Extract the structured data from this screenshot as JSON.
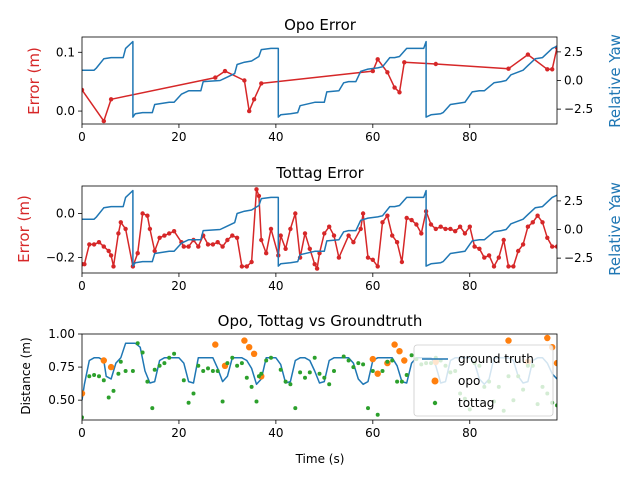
{
  "chart_data": [
    {
      "type": "line",
      "title": "Opo Error",
      "xlabel": "",
      "ylabel": "Error (m)",
      "y2label": "Relative Yaw",
      "xlim": [
        0,
        98
      ],
      "ylim": [
        -0.022,
        0.126
      ],
      "y2lim": [
        -3.8,
        3.8
      ],
      "xticks": [
        0,
        20,
        40,
        60,
        80
      ],
      "yticks": [
        0.0,
        0.1
      ],
      "ytick_labels": [
        "0.0",
        "0.1"
      ],
      "y2ticks": [
        -2.5,
        0.0,
        2.5
      ],
      "y2tick_labels": [
        "−2.5",
        "0.0",
        "2.5"
      ],
      "series": [
        {
          "role": "error",
          "color": "#d62728",
          "marker": "dot",
          "x": [
            0,
            4.5,
            6,
            27.5,
            29.5,
            33.5,
            34.5,
            35.5,
            37,
            60,
            61,
            63,
            64.5,
            65.5,
            66.5,
            73,
            88,
            92,
            96,
            97,
            98
          ],
          "y": [
            0.036,
            -0.017,
            0.02,
            0.057,
            0.068,
            0.052,
            0.0,
            0.02,
            0.047,
            0.068,
            0.088,
            0.066,
            0.04,
            0.032,
            0.083,
            0.08,
            0.072,
            0.096,
            0.071,
            0.071,
            0.108
          ]
        },
        {
          "role": "relative-yaw",
          "color": "#1f77b4",
          "axis": "right",
          "x": [
            0,
            2.5,
            3,
            4.5,
            6,
            8.5,
            9,
            10.5,
            10.5,
            11,
            12.5,
            14.5,
            15,
            18,
            19,
            20.5,
            22,
            24.5,
            25,
            28.5,
            29.5,
            31.5,
            32,
            33.5,
            35,
            36.5,
            37,
            39,
            40.5,
            40.5,
            41,
            43,
            44.5,
            45,
            48,
            50,
            50.5,
            53,
            54,
            55,
            56.5,
            57.5,
            59,
            61,
            62,
            63.5,
            64.5,
            65.5,
            67,
            70.5,
            71,
            71,
            72,
            74,
            74.5,
            76,
            79,
            80.5,
            82,
            83,
            85,
            86.5,
            87.5,
            88.5,
            91,
            92,
            93.5,
            95,
            97,
            98
          ],
          "y": [
            0.9,
            0.9,
            1.1,
            1.9,
            2.0,
            2.0,
            2.8,
            3.4,
            -3.2,
            -2.9,
            -2.8,
            -2.8,
            -2.1,
            -1.9,
            -1.9,
            -1.2,
            -0.9,
            -0.9,
            -0.1,
            0.0,
            0.2,
            0.6,
            1.4,
            1.6,
            1.7,
            2.1,
            2.7,
            2.8,
            2.8,
            -3.2,
            -3.0,
            -2.9,
            -2.8,
            -2.2,
            -1.9,
            -1.9,
            -1.0,
            -0.9,
            -0.2,
            -0.1,
            -0.1,
            0.8,
            1.0,
            1.1,
            1.2,
            2.0,
            2.0,
            2.1,
            2.8,
            2.8,
            3.4,
            -3.2,
            -3.0,
            -2.9,
            -2.8,
            -2.1,
            -1.9,
            -1.0,
            -0.9,
            -0.9,
            -0.2,
            -0.1,
            0.0,
            0.5,
            0.9,
            1.3,
            1.9,
            2.0,
            2.8,
            3.0
          ]
        }
      ]
    },
    {
      "type": "line",
      "title": "Tottag Error",
      "xlabel": "",
      "ylabel": "Error (m)",
      "y2label": "Relative Yaw",
      "xlim": [
        0,
        98
      ],
      "ylim": [
        -0.27,
        0.125
      ],
      "y2lim": [
        -3.8,
        3.8
      ],
      "xticks": [
        0,
        20,
        40,
        60,
        80
      ],
      "yticks": [
        -0.2,
        0.0
      ],
      "ytick_labels": [
        "−0.2",
        "0.0"
      ],
      "y2ticks": [
        -2.5,
        0.0,
        2.5
      ],
      "y2tick_labels": [
        "−2.5",
        "0.0",
        "2.5"
      ],
      "series": [
        {
          "role": "error",
          "color": "#d62728",
          "marker": "dot",
          "x": [
            0,
            0.5,
            1.5,
            2.5,
            3.5,
            4.5,
            5.5,
            6,
            6.5,
            7.5,
            8,
            9,
            10.5,
            11.5,
            12.5,
            13.5,
            14,
            15,
            16,
            17,
            18,
            19,
            20.5,
            21,
            22,
            23,
            24,
            25,
            26,
            27,
            28,
            29,
            30,
            31,
            32,
            33,
            34,
            35,
            36,
            36.5,
            37,
            38,
            39,
            40.5,
            41,
            42,
            43,
            44,
            45,
            46,
            47,
            48,
            48.5,
            49,
            50,
            51,
            52,
            53,
            55,
            56,
            57.5,
            58,
            59,
            60,
            61,
            62,
            63,
            64,
            65,
            66,
            67,
            68,
            69,
            70,
            71,
            72,
            73,
            74,
            75,
            76,
            77,
            78,
            79,
            80,
            81,
            82,
            83,
            84,
            85,
            86,
            87,
            88,
            89,
            90,
            91,
            92,
            93,
            94,
            95,
            96,
            97,
            98
          ],
          "y": [
            -0.23,
            -0.23,
            -0.14,
            -0.14,
            -0.13,
            -0.15,
            -0.17,
            -0.19,
            -0.24,
            -0.09,
            -0.04,
            -0.07,
            -0.24,
            -0.18,
            0.0,
            -0.01,
            -0.07,
            -0.17,
            -0.11,
            -0.1,
            -0.09,
            -0.08,
            -0.13,
            -0.15,
            -0.15,
            -0.12,
            -0.15,
            -0.1,
            -0.14,
            -0.14,
            -0.13,
            -0.15,
            -0.12,
            -0.1,
            -0.11,
            -0.24,
            -0.24,
            -0.22,
            0.11,
            0.08,
            -0.12,
            -0.18,
            -0.07,
            -0.19,
            -0.1,
            -0.16,
            -0.07,
            0.0,
            -0.2,
            -0.09,
            -0.16,
            -0.23,
            -0.25,
            -0.18,
            -0.09,
            -0.06,
            -0.1,
            -0.2,
            -0.1,
            -0.13,
            -0.07,
            0.0,
            -0.2,
            -0.21,
            -0.24,
            -0.04,
            -0.01,
            -0.1,
            -0.13,
            -0.22,
            -0.02,
            -0.03,
            -0.05,
            -0.09,
            0.01,
            -0.05,
            -0.07,
            -0.06,
            -0.07,
            -0.07,
            -0.08,
            -0.06,
            -0.09,
            -0.06,
            -0.15,
            -0.16,
            -0.2,
            -0.19,
            -0.24,
            -0.2,
            -0.12,
            -0.24,
            -0.24,
            -0.17,
            -0.14,
            -0.06,
            -0.04,
            -0.01,
            -0.04,
            -0.11,
            -0.15,
            -0.15
          ]
        },
        {
          "role": "relative-yaw",
          "color": "#1f77b4",
          "axis": "right",
          "x": [
            0,
            2.5,
            3,
            4.5,
            6,
            8.5,
            9,
            10.5,
            10.5,
            11,
            12.5,
            14.5,
            15,
            18,
            19,
            20.5,
            22,
            24.5,
            25,
            28.5,
            29.5,
            31.5,
            32,
            33.5,
            35,
            36.5,
            37,
            39,
            40.5,
            40.5,
            41,
            43,
            44.5,
            45,
            48,
            50,
            50.5,
            53,
            54,
            55,
            56.5,
            57.5,
            59,
            61,
            62,
            63.5,
            64.5,
            65.5,
            67,
            70.5,
            71,
            71,
            72,
            74,
            74.5,
            76,
            79,
            80.5,
            82,
            83,
            85,
            86.5,
            87.5,
            88.5,
            91,
            92,
            93.5,
            95,
            97,
            98
          ],
          "y": [
            0.9,
            0.9,
            1.1,
            1.9,
            2.0,
            2.0,
            2.8,
            3.4,
            -3.2,
            -2.9,
            -2.8,
            -2.8,
            -2.1,
            -1.9,
            -1.9,
            -1.2,
            -0.9,
            -0.9,
            -0.1,
            0.0,
            0.2,
            0.6,
            1.4,
            1.6,
            1.7,
            2.1,
            2.7,
            2.8,
            2.8,
            -3.2,
            -3.0,
            -2.9,
            -2.8,
            -2.2,
            -1.9,
            -1.9,
            -1.0,
            -0.9,
            -0.2,
            -0.1,
            -0.1,
            0.8,
            1.0,
            1.1,
            1.2,
            2.0,
            2.0,
            2.1,
            2.8,
            2.8,
            3.4,
            -3.2,
            -3.0,
            -2.9,
            -2.8,
            -2.1,
            -1.9,
            -1.0,
            -0.9,
            -0.9,
            -0.2,
            -0.1,
            0.0,
            0.5,
            0.9,
            1.3,
            1.9,
            2.0,
            2.8,
            3.0
          ]
        }
      ]
    },
    {
      "type": "line",
      "title": "Opo, Tottag vs Groundtruth",
      "xlabel": "Time (s)",
      "ylabel": "Distance (m)",
      "xlim": [
        0,
        98
      ],
      "ylim": [
        0.35,
        1.0
      ],
      "xticks": [
        0,
        20,
        40,
        60,
        80
      ],
      "yticks": [
        0.5,
        0.75,
        1.0
      ],
      "ytick_labels": [
        "0.50",
        "0.75",
        "1.00"
      ],
      "legend": "bottom-right",
      "series": [
        {
          "name": "ground truth",
          "color": "#1f77b4",
          "style": "line",
          "x": [
            0,
            0.5,
            1.5,
            2.5,
            3.5,
            4.5,
            5,
            6,
            7,
            8,
            9,
            10,
            11,
            12,
            13,
            14,
            15,
            16,
            17,
            18,
            19,
            20,
            21,
            22,
            23,
            24,
            25,
            26,
            27,
            28,
            29,
            30,
            31,
            32,
            33,
            34,
            35,
            36,
            37,
            38,
            39,
            40,
            41,
            42,
            43,
            44,
            45,
            46,
            47,
            48,
            49,
            50,
            51,
            52,
            53,
            54,
            55,
            56,
            57,
            58,
            59,
            60,
            61,
            62,
            63,
            64,
            65,
            66,
            67,
            68,
            69,
            70,
            71,
            72,
            73,
            74,
            75,
            76,
            77,
            78,
            79,
            80,
            81,
            82,
            83,
            84,
            85,
            86,
            87,
            88,
            89,
            90,
            91,
            92,
            93,
            94,
            95,
            96,
            97,
            98
          ],
          "y": [
            0.5,
            0.62,
            0.8,
            0.82,
            0.82,
            0.8,
            0.68,
            0.66,
            0.78,
            0.82,
            0.93,
            0.93,
            0.93,
            0.9,
            0.72,
            0.63,
            0.64,
            0.8,
            0.82,
            0.82,
            0.82,
            0.82,
            0.78,
            0.64,
            0.63,
            0.82,
            0.82,
            0.82,
            0.82,
            0.74,
            0.64,
            0.68,
            0.82,
            0.82,
            0.82,
            0.8,
            0.74,
            0.62,
            0.66,
            0.82,
            0.82,
            0.82,
            0.77,
            0.63,
            0.64,
            0.8,
            0.82,
            0.82,
            0.8,
            0.72,
            0.63,
            0.64,
            0.8,
            0.82,
            0.82,
            0.82,
            0.82,
            0.78,
            0.66,
            0.62,
            0.64,
            0.8,
            0.82,
            0.82,
            0.82,
            0.82,
            0.76,
            0.64,
            0.63,
            0.78,
            0.82,
            0.82,
            0.82,
            0.82,
            0.76,
            0.63,
            0.64,
            0.8,
            0.82,
            0.82,
            0.82,
            0.82,
            0.78,
            0.66,
            0.62,
            0.66,
            0.82,
            0.82,
            0.82,
            0.82,
            0.8,
            0.68,
            0.63,
            0.64,
            0.8,
            0.82,
            0.82,
            0.78,
            0.7,
            0.66
          ]
        },
        {
          "name": "opo",
          "color": "#ff7f0e",
          "style": "dot-large",
          "x": [
            0,
            4.5,
            6,
            27.5,
            29.5,
            33.5,
            34.5,
            35.5,
            37,
            60,
            61,
            63,
            64.5,
            65.5,
            66.5,
            73,
            88,
            92,
            96,
            97,
            98
          ],
          "y": [
            0.55,
            0.8,
            0.75,
            0.92,
            0.76,
            0.95,
            0.9,
            0.85,
            0.68,
            0.81,
            0.7,
            0.78,
            0.92,
            0.87,
            0.8,
            0.79,
            0.95,
            0.79,
            0.97,
            0.9,
            0.78
          ]
        },
        {
          "name": "tottag",
          "color": "#2ca02c",
          "style": "dot-small",
          "x": [
            0,
            1.5,
            2.5,
            3.5,
            4.5,
            5.5,
            6.5,
            7.5,
            8,
            9,
            10.5,
            11.5,
            12.5,
            13.5,
            14.5,
            15,
            16,
            17,
            18,
            19,
            21,
            22,
            23,
            24,
            25,
            26,
            27,
            28,
            29,
            30,
            31,
            32,
            33,
            34,
            35,
            36,
            36.5,
            37,
            38,
            39,
            41,
            42,
            43,
            44,
            45,
            46,
            47,
            48,
            49,
            50,
            51,
            52,
            54,
            55,
            56,
            57,
            58,
            59,
            60,
            61,
            62,
            63,
            64,
            65,
            66,
            67,
            68,
            69,
            70,
            71,
            72,
            73,
            74,
            75,
            76,
            77,
            78,
            79,
            80,
            81,
            82,
            83,
            84,
            85,
            86,
            87,
            88,
            89,
            90,
            91,
            92,
            93,
            94,
            95,
            96,
            97,
            98
          ],
          "y": [
            0.37,
            0.68,
            0.69,
            0.68,
            0.65,
            0.52,
            0.57,
            0.7,
            0.79,
            0.72,
            0.72,
            0.93,
            0.86,
            0.64,
            0.44,
            0.73,
            0.76,
            0.78,
            0.82,
            0.85,
            0.65,
            0.48,
            0.55,
            0.76,
            0.72,
            0.74,
            0.72,
            0.72,
            0.49,
            0.78,
            0.82,
            0.76,
            0.78,
            0.67,
            0.6,
            0.49,
            0.68,
            0.7,
            0.8,
            0.82,
            0.73,
            0.64,
            0.62,
            0.44,
            0.71,
            0.67,
            0.71,
            0.82,
            0.7,
            0.67,
            0.62,
            0.72,
            0.83,
            0.8,
            0.75,
            0.78,
            0.77,
            0.44,
            0.72,
            0.39,
            0.72,
            0.79,
            0.8,
            0.64,
            0.64,
            0.69,
            0.84,
            0.81,
            0.77,
            0.78,
            0.78,
            0.82,
            0.8,
            0.76,
            0.71,
            0.72,
            0.55,
            0.51,
            0.43,
            0.78,
            0.76,
            0.6,
            0.64,
            0.49,
            0.6,
            0.42,
            0.68,
            0.5,
            0.68,
            0.58,
            0.76,
            0.76,
            0.47,
            0.6,
            0.55,
            0.48,
            0.46
          ]
        }
      ]
    }
  ]
}
